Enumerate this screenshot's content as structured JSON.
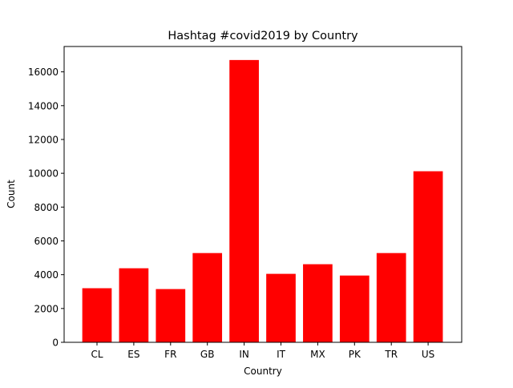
{
  "chart_data": {
    "type": "bar",
    "title": "Hashtag #covid2019 by Country",
    "xlabel": "Country",
    "ylabel": "Count",
    "categories": [
      "CL",
      "ES",
      "FR",
      "GB",
      "IN",
      "IT",
      "MX",
      "PK",
      "TR",
      "US"
    ],
    "values": [
      3200,
      4380,
      3150,
      5280,
      16700,
      4050,
      4620,
      3950,
      5280,
      10120
    ],
    "ylim": [
      0,
      17500
    ],
    "yticks": [
      0,
      2000,
      4000,
      6000,
      8000,
      10000,
      12000,
      14000,
      16000
    ],
    "bar_color": "#ff0000",
    "grid": false
  }
}
